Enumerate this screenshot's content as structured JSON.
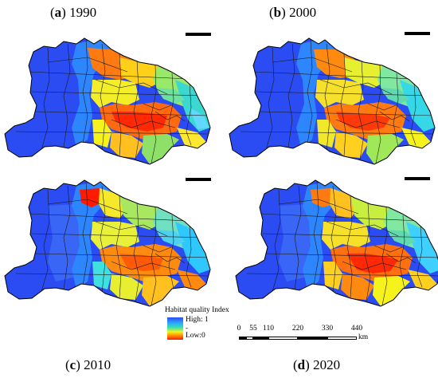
{
  "panels": [
    {
      "letter": "a",
      "year": "1990"
    },
    {
      "letter": "b",
      "year": "2000"
    },
    {
      "letter": "c",
      "year": "2010"
    },
    {
      "letter": "d",
      "year": "2020"
    }
  ],
  "legend": {
    "title": "Habitat quality Index",
    "high": "High: 1",
    "low": "Low:0",
    "mid_marker": "-"
  },
  "scalebar": {
    "ticks": [
      "0",
      "55",
      "110",
      "220",
      "330",
      "440"
    ],
    "tick_values_km": [
      0,
      55,
      110,
      220,
      330,
      440
    ],
    "unit": "km"
  },
  "colors": {
    "high": "#2b4cf2",
    "mid_high": "#36e0b0",
    "mid": "#f6f21c",
    "mid_low": "#ff8a00",
    "low": "#ff1a00",
    "boundary": "#000000"
  }
}
